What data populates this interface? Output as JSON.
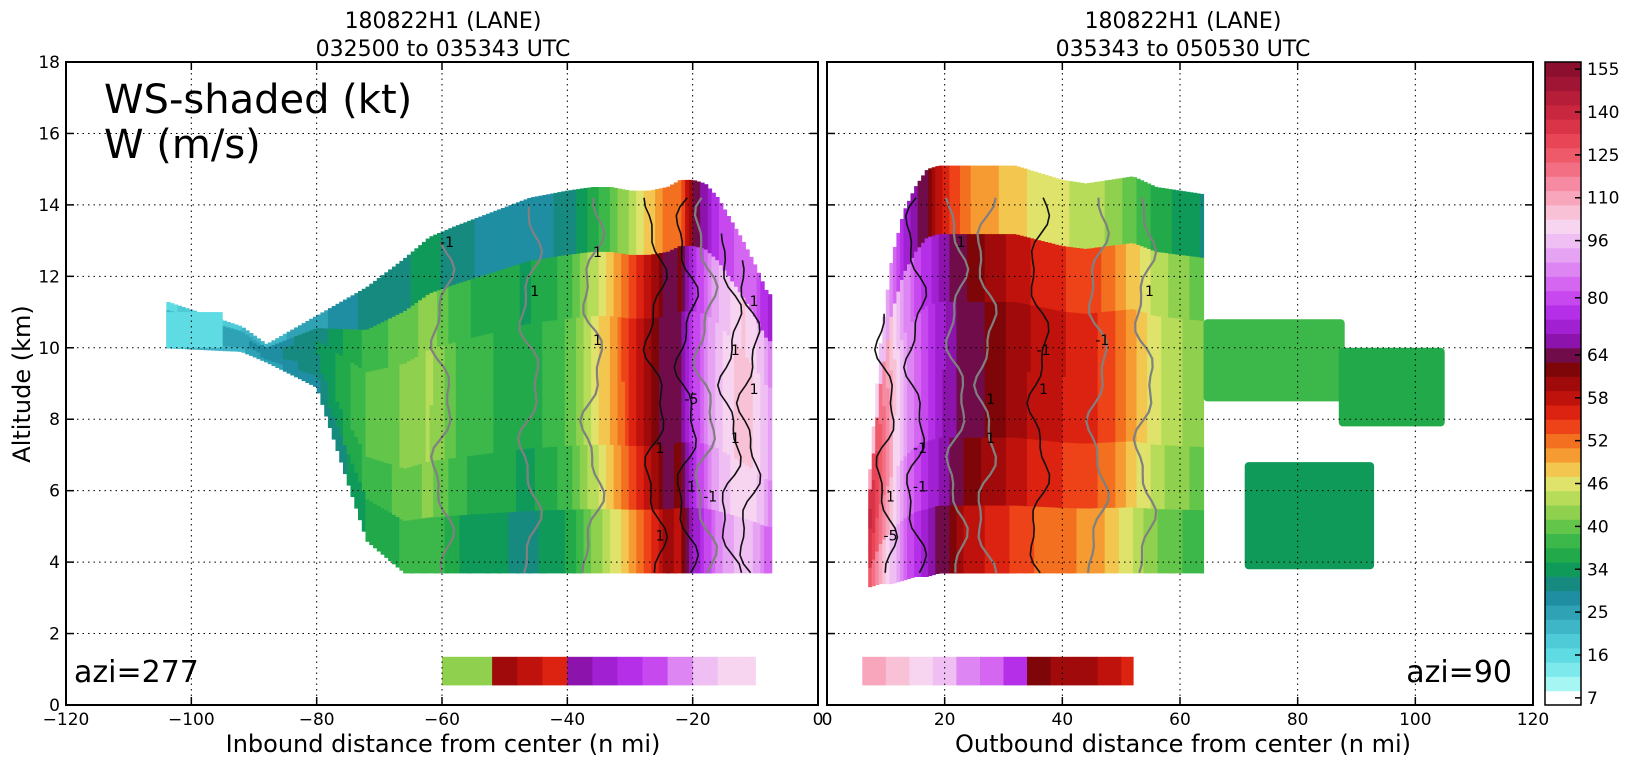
{
  "chart_data": [
    {
      "type": "heatmap",
      "title": [
        "180822H1 (LANE)",
        "032500 to 035343 UTC"
      ],
      "xlabel": "Inbound distance from center (n mi)",
      "ylabel": "Altitude (km)",
      "xlim": [
        -120,
        0
      ],
      "ylim": [
        0,
        18
      ],
      "xticks": [
        -120,
        -100,
        -80,
        -60,
        -40,
        -20,
        0
      ],
      "yticks": [
        0,
        2,
        4,
        6,
        8,
        10,
        12,
        14,
        16,
        18
      ],
      "grid": true,
      "annotations": [
        "WS-shaded (kt)",
        "W (m/s)",
        "azi=277"
      ],
      "contour_labels": [
        "1",
        "1",
        "1",
        "1",
        "1",
        "1",
        "-1",
        "-1",
        "1",
        "-5",
        "1",
        "1",
        "1"
      ],
      "wind_speed_field": {
        "x": [
          -104,
          -92,
          -88,
          -80,
          -72,
          -66,
          -62,
          -58,
          -52,
          -46,
          -40,
          -36,
          -33,
          -30,
          -27,
          -24,
          -22,
          -20,
          -18,
          -16,
          -14,
          -12,
          -10,
          -8
        ],
        "band_top": [
          11.3,
          10.6,
          10.1,
          10.9,
          11.7,
          12.5,
          13.1,
          13.4,
          13.8,
          14.2,
          14.4,
          14.5,
          14.5,
          14.4,
          14.4,
          14.5,
          14.7,
          14.7,
          14.6,
          14.2,
          13.6,
          13.0,
          12.3,
          11.5
        ],
        "band_bottom": [
          10.0,
          9.9,
          9.6,
          8.9,
          4.6,
          3.7,
          3.7,
          3.7,
          3.7,
          3.7,
          3.7,
          3.7,
          3.7,
          3.7,
          3.7,
          3.7,
          3.7,
          3.7,
          3.7,
          3.7,
          3.7,
          3.7,
          3.7,
          3.7
        ],
        "ws_kt": [
          22,
          26,
          28,
          32,
          38,
          40,
          42,
          38,
          36,
          35,
          38,
          44,
          48,
          53,
          58,
          64,
          62,
          75,
          84,
          94,
          99,
          104,
          100,
          90
        ]
      },
      "low_band": {
        "x": [
          -60,
          -52,
          -48,
          -44,
          -40,
          -36,
          -32,
          -28,
          -24,
          -20,
          -16,
          -12,
          -10
        ],
        "ws_kt": [
          42,
          60,
          58,
          56,
          70,
          75,
          78,
          82,
          90,
          98,
          102,
          104,
          60
        ]
      }
    },
    {
      "type": "heatmap",
      "title": [
        "180822H1 (LANE)",
        "035343 to 050530 UTC"
      ],
      "xlabel": "Outbound distance from center (n mi)",
      "ylabel": "",
      "xlim": [
        0,
        120
      ],
      "ylim": [
        0,
        18
      ],
      "xticks": [
        0,
        20,
        40,
        60,
        80,
        100,
        120
      ],
      "yticks": [
        0,
        2,
        4,
        6,
        8,
        10,
        12,
        14,
        16,
        18
      ],
      "grid": true,
      "annotations": [
        "azi=90"
      ],
      "contour_labels": [
        "-5",
        "-1",
        "1",
        "1",
        "-1",
        "1",
        "1",
        "1",
        "-1",
        "1",
        "-1"
      ],
      "wind_speed_field": {
        "x": [
          7,
          9,
          11,
          13,
          15,
          17,
          19,
          21,
          24,
          28,
          32,
          36,
          40,
          44,
          48,
          52,
          56,
          60,
          64
        ],
        "band_top": [
          6.0,
          10.0,
          12.5,
          13.8,
          14.5,
          15.0,
          15.1,
          15.1,
          15.1,
          15.1,
          15.1,
          14.9,
          14.7,
          14.6,
          14.7,
          14.8,
          14.5,
          14.4,
          14.3
        ],
        "band_bottom": [
          3.3,
          3.4,
          3.4,
          3.5,
          3.6,
          3.6,
          3.7,
          3.7,
          3.7,
          3.7,
          3.7,
          3.7,
          3.7,
          3.7,
          3.7,
          3.7,
          3.7,
          3.7,
          3.7
        ],
        "ws_kt": [
          135,
          120,
          104,
          90,
          82,
          76,
          70,
          66,
          62,
          60,
          58,
          56,
          55,
          54,
          52,
          48,
          44,
          42,
          40
        ]
      },
      "right_patches": [
        {
          "x": [
            64,
            88
          ],
          "y": [
            8.5,
            10.8
          ],
          "ws_kt": 38
        },
        {
          "x": [
            87,
            105
          ],
          "y": [
            7.8,
            10.0
          ],
          "ws_kt": 36
        },
        {
          "x": [
            71,
            93
          ],
          "y": [
            3.8,
            6.8
          ],
          "ws_kt": 35
        }
      ],
      "low_band": {
        "x": [
          6,
          10,
          14,
          18,
          22,
          26,
          30,
          34,
          38,
          42,
          46,
          50,
          52
        ],
        "ws_kt": [
          110,
          108,
          102,
          96,
          90,
          86,
          76,
          62,
          60,
          60,
          58,
          56,
          60
        ]
      }
    }
  ],
  "colorbar": {
    "ticks": [
      "155",
      "140",
      "125",
      "110",
      "96",
      "80",
      "64",
      "58",
      "52",
      "46",
      "40",
      "34",
      "25",
      "16",
      "7"
    ],
    "levels": [
      7,
      10,
      13,
      16,
      19,
      22,
      25,
      28,
      31,
      34,
      36,
      38,
      40,
      42,
      44,
      46,
      48,
      50,
      52,
      54,
      56,
      58,
      60,
      62,
      64,
      68,
      72,
      76,
      80,
      84,
      88,
      92,
      96,
      101,
      106,
      110,
      115,
      120,
      125,
      130,
      135,
      140,
      145,
      150,
      155,
      160
    ],
    "colors": [
      "#ffffff",
      "#a6f7f4",
      "#7de9ed",
      "#5fdbe3",
      "#4ecbd6",
      "#3fb6c7",
      "#2fa2b5",
      "#1f8ea3",
      "#178a7f",
      "#0f9a5a",
      "#22a94a",
      "#3cb84a",
      "#64c54b",
      "#8fd04f",
      "#b7dc5a",
      "#dfe36b",
      "#f2c64f",
      "#f59b32",
      "#f2701f",
      "#ee4318",
      "#dc2210",
      "#c0120c",
      "#a00a0a",
      "#7e0609",
      "#700c4a",
      "#8c14ad",
      "#a020d2",
      "#b52fe8",
      "#c848f0",
      "#d466f2",
      "#dd85f2",
      "#e6a3f4",
      "#efbff4",
      "#f7d4f0",
      "#f9c1d6",
      "#f8a6bc",
      "#f68aa2",
      "#f37084",
      "#ef5a6a",
      "#e84556",
      "#da3449",
      "#c9263f",
      "#b51d38",
      "#a01534",
      "#8c0f30"
    ]
  }
}
